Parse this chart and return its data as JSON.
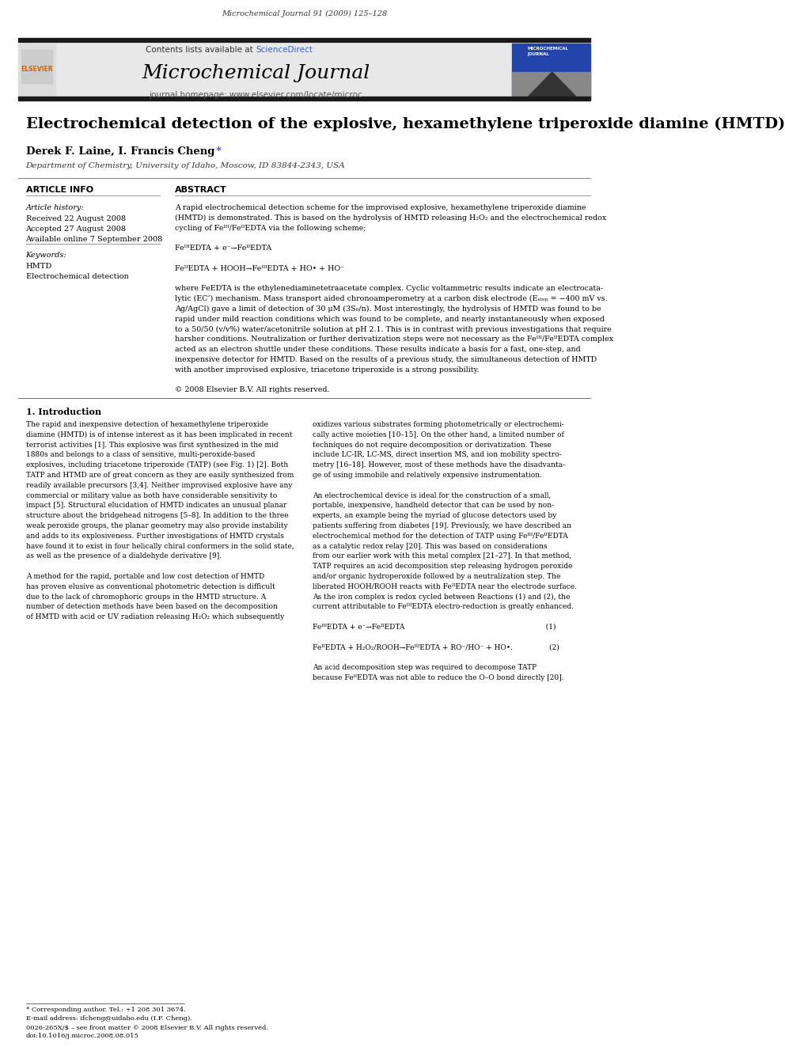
{
  "page_header": "Microchemical Journal 91 (2009) 125–128",
  "journal_name": "Microchemical Journal",
  "contents_line": "Contents lists available at ScienceDirect",
  "journal_homepage": "journal homepage: www.elsevier.com/locate/microc",
  "article_title": "Electrochemical detection of the explosive, hexamethylene triperoxide diamine (HMTD)",
  "authors": "Derek F. Laine, I. Francis Cheng *",
  "affiliation": "Department of Chemistry, University of Idaho, Moscow, ID 83844-2343, USA",
  "article_info_header": "ARTICLE INFO",
  "abstract_header": "ABSTRACT",
  "article_history_label": "Article history:",
  "received": "Received 22 August 2008",
  "accepted": "Accepted 27 August 2008",
  "available": "Available online 7 September 2008",
  "keywords_label": "Keywords:",
  "keyword1": "HMTD",
  "keyword2": "Electrochemical detection",
  "abstract_text": "A rapid electrochemical detection scheme for the improvised explosive, hexamethylene triperoxide diamine (HMTD) is demonstrated. This is based on the hydrolysis of HMTD releasing H₂O₂ and the electrochemical redox cycling of Feᴵᴵᴵ/FeᴵᴵEDTA via the following scheme;\n\nFeᴵᴵᴵEDTA + e⁻→FeᴵᴵEDTA\n\nFeᴵᴵEDTA + HOOH→FeᴵᴵᴵEDTA + HO• + HO⁻\n\nwhere FeEDTA is the ethylenediaminetetraacetate complex. Cyclic voltammetric results indicate an electrocatalytic (EC’) mechanism. Mass transport aided chronoamperometry at a carbon disk electrode (Eₛₜₑₚ = −400 mV vs. Ag/AgCl) gave a limit of detection of 30 μM (3S₀/n). Most interestingly, the hydrolysis of HMTD was found to be rapid under mild reaction conditions which was found to be complete, and nearly instantaneously when exposed to a 50/50 (v/v%) water/acetonitrile solution at pH 2.1. This is in contrast with previous investigations that require harsher conditions. Neutralization or further derivatization steps were not necessary as the Feᴵᴵᴵ/FeᴵᴵEDTA complex acted as an electron shuttle under these conditions. These results indicate a basis for a fast, one-step, and inexpensive detector for HMTD. Based on the results of a previous study, the simultaneous detection of HMTD with another improvised explosive, triacetone triperoxide is a strong possibility.\n\n© 2008 Elsevier B.V. All rights reserved.",
  "intro_header": "1. Introduction",
  "intro_col1": "The rapid and inexpensive detection of hexamethylene triperoxide diamine (HMTD) is of intense interest as it has been implicated in recent terrorist activities [1]. This explosive was first synthesized in the mid 1880s and belongs to a class of sensitive, multi-peroxide-based explosives, including triacetone triperoxide (TATP) (see Fig. 1) [2]. Both TATP and HTMD are of great concern as they are easily synthesized from readily available precursors [3,4]. Neither improvised explosive have any commercial or military value as both have considerable sensitivity to impact [5]. Structural elucidation of HMTD indicates an unusual planar structure about the bridgehead nitrogens [5–8]. In addition to the three weak peroxide groups, the planar geometry may also provide instability and adds to its explosiveness. Further investigations of HMTD crystals have found it to exist in four helically chiral conformers in the solid state, as well as the presence of a dialdehyde derivative [9].\n\nA method for the rapid, portable and low cost detection of HMTD has proven elusive as conventional photometric detection is difficult due to the lack of chromophoric groups in the HMTD structure. A number of detection methods have been based on the decomposition of HMTD with acid or UV radiation releasing H₂O₂ which subsequently",
  "intro_col2": "oxidizes various substrates forming photometrically or electrochemically active moieties [10–15]. On the other hand, a limited number of techniques do not require decomposition or derivatization. These include LC-IR, LC-MS, direct insertion MS, and ion mobility spectrometry [16–18]. However, most of these methods have the disadvantage of using immobile and relatively expensive instrumentation.\n\nAn electrochemical device is ideal for the construction of a small, portable, inexpensive, handheld detector that can be used by non-experts, an example being the myriad of glucose detectors used by patients suffering from diabetes [19]. Previously, we have described an electrochemical method for the detection of TATP using Feᴵᴵᴵ/FeᴵᴵEDTA as a catalytic redox relay [20]. This was based on considerations from our earlier work with this metal complex [21–27]. In that method, TATP requires an acid decomposition step releasing hydrogen peroxide and/or organic hydroperoxide followed by a neutralization step. The liberated HOOH/ROOH reacts with FeᴵᴵEDTA near the electrode surface. As the iron complex is redox cycled between Reactions (1) and (2), the current attributable to FeᴵᴵᴵEDTA electro-reduction is greatly enhanced.\n\nFeᴵᴵᴵEDTA + e⁻→FeᴵᴵEDTA                                             (1)\n\nFeᴵᴵEDTA + H₂O₂/ROOH→FeᴵᴵᴵEDTA + RO⁻/HO⁻ + HO•.              (2)\n\nAn acid decomposition step was required to decompose TATP because FeᴵᴵEDTA was not able to reduce the O–O bond directly [20].",
  "footnote1": "* Corresponding author. Tel.: +1 208 301 3674.",
  "footnote2": "E-mail address: ifcheng@uidaho.edu (I.F. Cheng).",
  "footnote3": "0026-265X/$ – see front matter © 2008 Elsevier B.V. All rights reserved.",
  "footnote4": "doi:10.1016/j.microc.2008.08.015",
  "bg_color": "#ffffff",
  "header_bar_color": "#1a1a1a",
  "journal_header_bg": "#e8e8e8",
  "science_direct_color": "#3366cc",
  "title_color": "#000000",
  "text_color": "#000000",
  "section_header_color": "#000000"
}
